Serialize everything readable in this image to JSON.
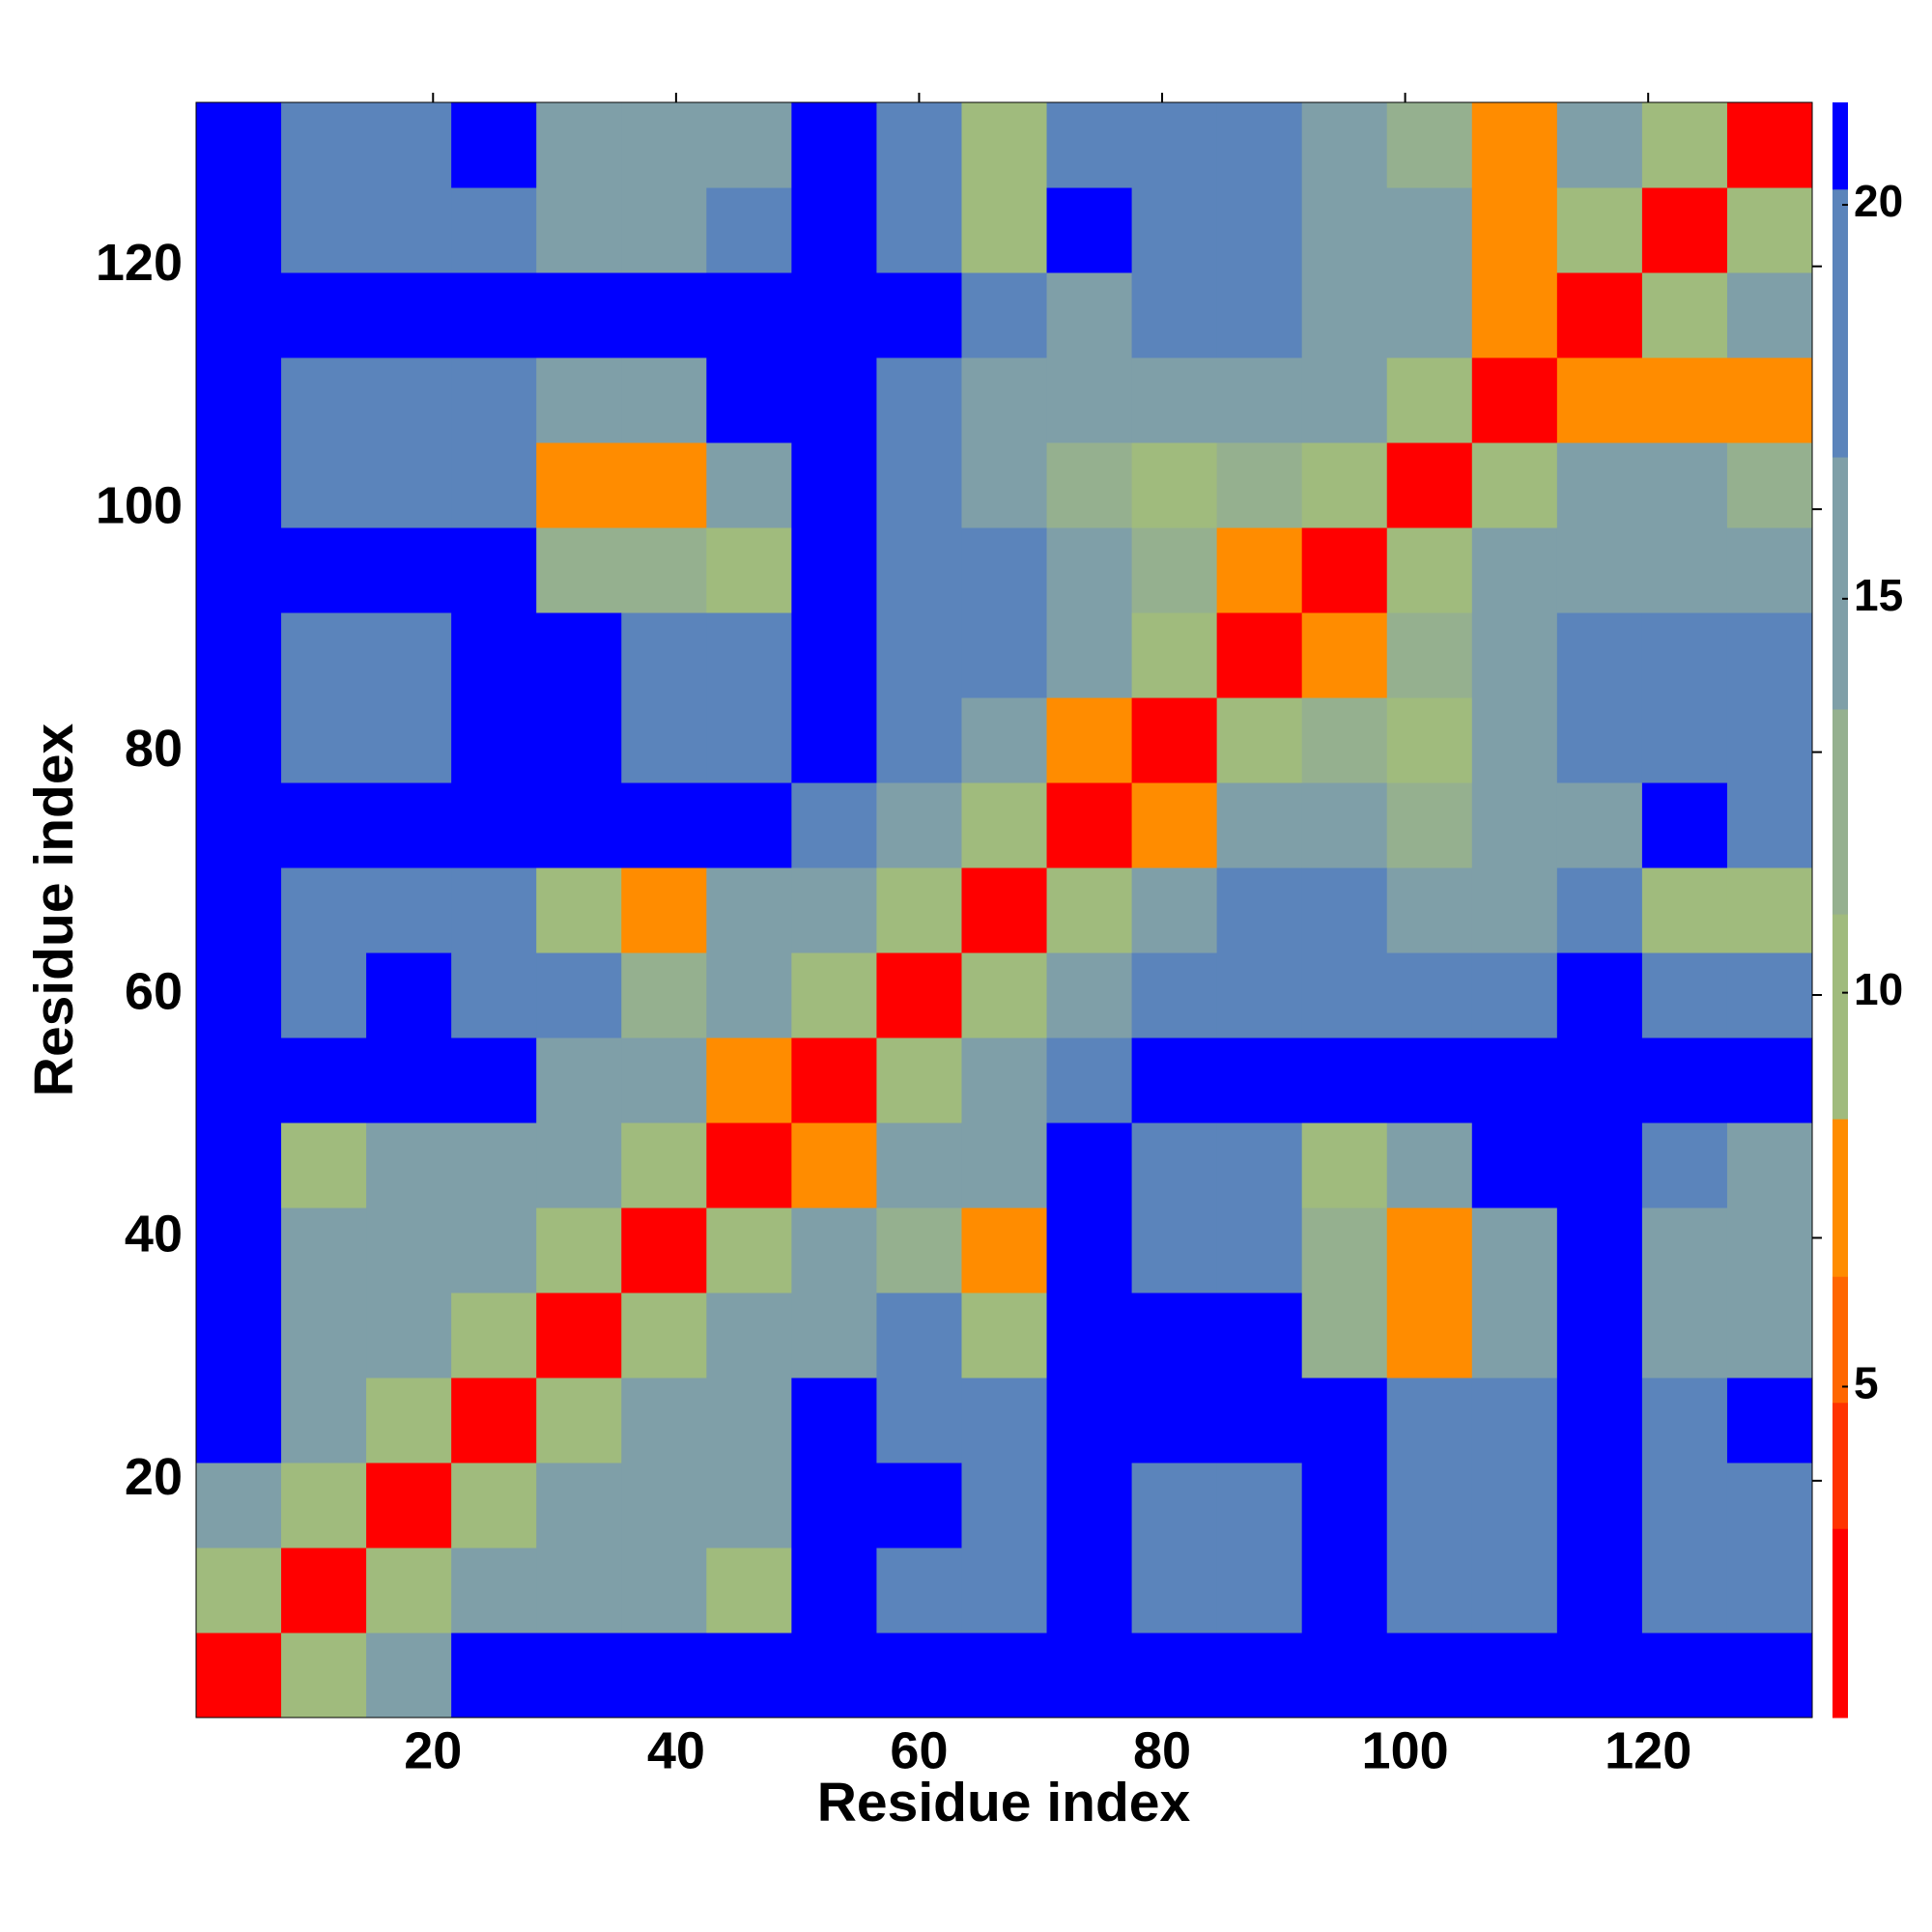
{
  "chart_data": {
    "type": "heatmap",
    "xlabel": "Residue index",
    "ylabel": "Residue index",
    "xbins": [
      0.5,
      7.5,
      14.5,
      21.5,
      28.5,
      35.5,
      42.5,
      49.5,
      56.5,
      63.5,
      70.5,
      77.5,
      84.5,
      91.5,
      98.5,
      105.5,
      112.5,
      119.5,
      126.5,
      133.5
    ],
    "ybins": [
      0.5,
      7.5,
      14.5,
      21.5,
      28.5,
      35.5,
      42.5,
      49.5,
      56.5,
      63.5,
      70.5,
      77.5,
      84.5,
      91.5,
      98.5,
      105.5,
      112.5,
      119.5,
      126.5,
      133.5
    ],
    "xlim": [
      0.5,
      133.5
    ],
    "ylim": [
      0.5,
      133.5
    ],
    "xticks": [
      20,
      40,
      60,
      80,
      100,
      120
    ],
    "yticks": [
      20,
      40,
      60,
      80,
      100,
      120
    ],
    "clim": [
      0.8,
      21.3
    ],
    "cticks": [
      5,
      10,
      15,
      20
    ],
    "color_bands": [
      {
        "to": 3.2,
        "color": "#ff0000"
      },
      {
        "to": 4.8,
        "color": "#ff3300"
      },
      {
        "to": 6.4,
        "color": "#ff6600"
      },
      {
        "to": 8.4,
        "color": "#ff8c00"
      },
      {
        "to": 11.0,
        "color": "#a0bb7d"
      },
      {
        "to": 13.6,
        "color": "#95b08f"
      },
      {
        "to": 16.8,
        "color": "#7f9fa8"
      },
      {
        "to": 20.2,
        "color": "#5b84bb"
      },
      {
        "to": 21.3,
        "color": "#0000ff"
      }
    ],
    "values": [
      [
        3,
        10,
        14,
        21,
        21,
        21,
        21,
        21,
        21,
        21,
        21,
        21,
        21,
        21,
        21,
        21,
        21,
        21,
        21
      ],
      [
        10,
        3,
        10,
        14,
        16,
        16,
        9,
        21,
        18,
        18,
        21,
        19,
        19,
        21,
        17,
        17,
        21,
        18,
        18
      ],
      [
        14,
        10,
        3,
        10,
        14,
        15,
        15,
        21,
        21,
        18,
        21,
        19,
        19,
        21,
        17,
        17,
        21,
        18,
        18
      ],
      [
        21,
        14,
        10,
        3,
        10,
        14,
        15,
        21,
        18,
        18,
        21,
        21,
        21,
        21,
        17,
        17,
        21,
        18,
        21
      ],
      [
        21,
        16,
        14,
        10,
        3,
        10,
        15,
        15,
        17,
        9,
        21,
        21,
        21,
        12,
        8,
        15,
        21,
        15,
        15
      ],
      [
        21,
        16,
        15,
        14,
        10,
        3,
        10,
        14,
        12,
        8,
        21,
        17,
        17,
        12,
        8,
        15,
        21,
        15,
        15
      ],
      [
        21,
        9,
        15,
        15,
        15,
        10,
        3,
        8,
        15,
        15,
        21,
        17,
        17,
        10,
        14,
        21,
        21,
        17,
        16
      ],
      [
        21,
        21,
        21,
        21,
        15,
        14,
        8,
        3,
        10,
        14,
        18,
        21,
        21,
        21,
        21,
        21,
        21,
        21,
        21
      ],
      [
        21,
        18,
        21,
        18,
        17,
        12,
        15,
        10,
        3,
        10,
        14,
        17,
        17,
        17,
        17,
        17,
        21,
        17,
        17
      ],
      [
        21,
        18,
        18,
        18,
        9,
        8,
        15,
        14,
        10,
        3,
        10,
        14,
        17,
        17,
        14,
        14,
        17,
        9,
        10
      ],
      [
        21,
        21,
        21,
        21,
        21,
        21,
        21,
        18,
        14,
        10,
        3,
        8,
        14,
        14,
        13,
        15,
        15,
        21,
        18
      ],
      [
        21,
        19,
        19,
        21,
        21,
        17,
        17,
        21,
        17,
        14,
        8,
        3,
        10,
        12,
        9,
        14,
        18,
        17,
        18
      ],
      [
        21,
        19,
        19,
        21,
        21,
        17,
        17,
        21,
        17,
        17,
        14,
        10,
        3,
        8,
        13,
        14,
        18,
        17,
        18
      ],
      [
        21,
        21,
        21,
        21,
        12,
        12,
        10,
        21,
        17,
        17,
        14,
        12,
        8,
        3,
        10,
        14,
        15,
        16,
        16
      ],
      [
        21,
        17,
        17,
        17,
        8,
        8,
        14,
        21,
        17,
        14,
        13,
        9,
        13,
        10,
        3,
        10,
        14,
        16,
        12
      ],
      [
        21,
        17,
        17,
        17,
        15,
        15,
        21,
        21,
        17,
        14,
        15,
        14,
        14,
        14,
        10,
        3,
        8,
        8,
        8
      ],
      [
        21,
        21,
        21,
        21,
        21,
        21,
        21,
        21,
        21,
        17,
        15,
        18,
        18,
        15,
        14,
        8,
        3,
        10,
        14
      ],
      [
        21,
        18,
        18,
        18,
        15,
        15,
        17,
        21,
        17,
        9,
        21,
        17,
        17,
        16,
        16,
        8,
        10,
        3,
        10
      ],
      [
        21,
        18,
        18,
        21,
        15,
        15,
        16,
        21,
        17,
        10,
        18,
        18,
        18,
        16,
        12,
        8,
        14,
        10,
        3
      ]
    ]
  }
}
